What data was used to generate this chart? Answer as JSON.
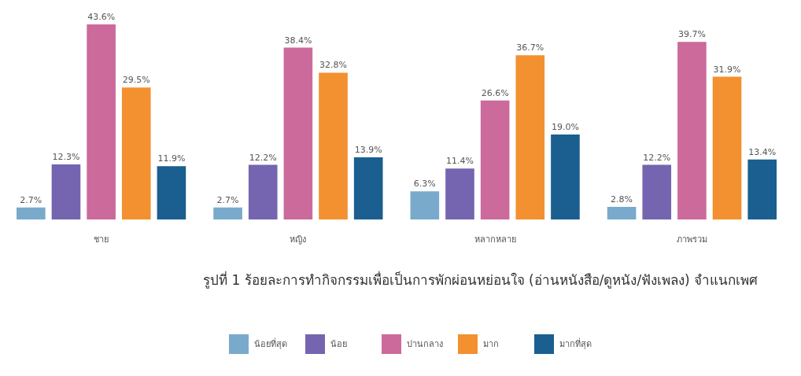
{
  "chart_data": {
    "type": "bar",
    "title": "รูปที่ 1 ร้อยละการทำกิจกรรมเพื่อเป็นการพักผ่อนหย่อนใจ (อ่านหนังสือ/ดูหนัง/ฟังเพลง) จำแนกเพศ",
    "categories": [
      "ชาย",
      "หญิง",
      "หลากหลาย",
      "ภาพรวม"
    ],
    "series": [
      {
        "name": "น้อยที่สุด",
        "color": "#79aacb",
        "values": [
          2.7,
          2.7,
          6.3,
          2.8
        ],
        "value_labels": [
          "2.7%",
          "2.7%",
          "6.3%",
          "2.8%"
        ]
      },
      {
        "name": "น้อย",
        "color": "#7565b0",
        "values": [
          12.3,
          12.2,
          11.4,
          12.2
        ],
        "value_labels": [
          "12.3%",
          "12.2%",
          "11.4%",
          "12.2%"
        ]
      },
      {
        "name": "ปานกลาง",
        "color": "#cc6a9c",
        "values": [
          43.6,
          38.4,
          26.6,
          39.7
        ],
        "value_labels": [
          "43.6%",
          "38.4%",
          "26.6%",
          "39.7%"
        ]
      },
      {
        "name": "มาก",
        "color": "#f39030",
        "values": [
          29.5,
          32.8,
          36.7,
          31.9
        ],
        "value_labels": [
          "29.5%",
          "32.8%",
          "36.7%",
          "31.9%"
        ]
      },
      {
        "name": "มากที่สุด",
        "color": "#1a5f8f",
        "values": [
          11.9,
          13.9,
          19.0,
          13.4
        ],
        "value_labels": [
          "11.9%",
          "13.9%",
          "19.0%",
          "13.4%"
        ]
      }
    ],
    "legend": "bottom"
  }
}
